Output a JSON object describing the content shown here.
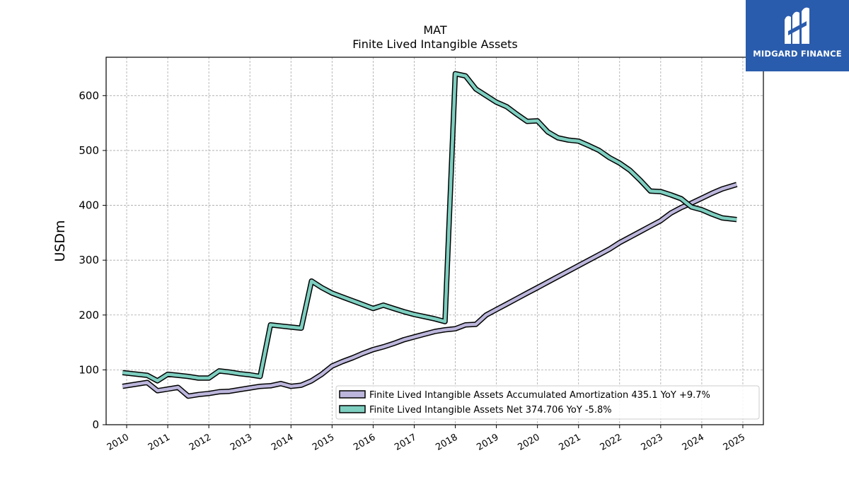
{
  "logo": {
    "name": "MIDGARD FINANCE",
    "bg_color": "#2a5cad"
  },
  "chart_data": {
    "type": "line",
    "title": "MAT",
    "subtitle": "Finite Lived Intangible Assets",
    "ylabel": "USDm",
    "xlabel": "",
    "ylim": [
      0,
      670
    ],
    "xlim": [
      2009.5,
      2025.5
    ],
    "yticks": [
      0,
      100,
      200,
      300,
      400,
      500,
      600
    ],
    "xticks": [
      "2010",
      "2011",
      "2012",
      "2013",
      "2014",
      "2015",
      "2016",
      "2017",
      "2018",
      "2019",
      "2020",
      "2021",
      "2022",
      "2023",
      "2024",
      "2025"
    ],
    "grid": true,
    "legend_position": "lower-right",
    "series": [
      {
        "name": "Finite Lived Intangible Assets Accumulated Amortization",
        "legend_label": "Finite Lived Intangible Assets Accumulated Amortization  435.1 YoY +9.7%",
        "color": "#bcb6dc",
        "x": [
          2009.9,
          2010.5,
          2010.75,
          2011.0,
          2011.25,
          2011.5,
          2011.75,
          2012.0,
          2012.25,
          2012.5,
          2012.75,
          2013.0,
          2013.25,
          2013.5,
          2013.75,
          2014.0,
          2014.25,
          2014.5,
          2014.75,
          2015.0,
          2015.25,
          2015.5,
          2015.75,
          2016.0,
          2016.25,
          2016.5,
          2016.75,
          2017.0,
          2017.25,
          2017.5,
          2017.75,
          2018.0,
          2018.25,
          2018.5,
          2018.75,
          2019.0,
          2019.25,
          2019.5,
          2019.75,
          2020.0,
          2020.25,
          2020.5,
          2020.75,
          2021.0,
          2021.25,
          2021.5,
          2021.75,
          2022.0,
          2022.25,
          2022.5,
          2022.75,
          2023.0,
          2023.25,
          2023.5,
          2023.75,
          2024.0,
          2024.25,
          2024.5,
          2024.85
        ],
        "values": [
          70,
          77,
          62,
          65,
          68,
          52,
          55,
          57,
          60,
          61,
          64,
          67,
          70,
          71,
          75,
          70,
          72,
          80,
          92,
          107,
          115,
          122,
          130,
          137,
          142,
          148,
          155,
          160,
          165,
          170,
          173,
          175,
          182,
          183,
          200,
          210,
          220,
          230,
          240,
          250,
          260,
          270,
          280,
          290,
          300,
          310,
          320,
          332,
          342,
          352,
          362,
          372,
          386,
          396,
          404,
          413,
          422,
          430,
          438
        ]
      },
      {
        "name": "Finite Lived Intangible Assets Net",
        "legend_label": "Finite Lived Intangible Assets Net  374.706 YoY -5.8%",
        "color": "#7ecfc0",
        "x": [
          2009.9,
          2010.5,
          2010.75,
          2011.0,
          2011.25,
          2011.5,
          2011.75,
          2012.0,
          2012.25,
          2012.5,
          2012.75,
          2013.0,
          2013.25,
          2013.5,
          2013.75,
          2014.0,
          2014.25,
          2014.5,
          2014.75,
          2015.0,
          2015.25,
          2015.5,
          2015.75,
          2016.0,
          2016.25,
          2016.5,
          2016.75,
          2017.0,
          2017.25,
          2017.5,
          2017.75,
          2018.0,
          2018.25,
          2018.5,
          2018.75,
          2019.0,
          2019.25,
          2019.5,
          2019.75,
          2020.0,
          2020.25,
          2020.5,
          2020.75,
          2021.0,
          2021.25,
          2021.5,
          2021.75,
          2022.0,
          2022.25,
          2022.5,
          2022.75,
          2023.0,
          2023.25,
          2023.5,
          2023.75,
          2024.0,
          2024.25,
          2024.5,
          2024.85
        ],
        "values": [
          95,
          90,
          80,
          92,
          90,
          88,
          85,
          85,
          98,
          96,
          93,
          91,
          88,
          182,
          180,
          178,
          176,
          262,
          250,
          240,
          233,
          226,
          219,
          212,
          218,
          212,
          206,
          201,
          197,
          193,
          188,
          640,
          636,
          612,
          600,
          588,
          580,
          566,
          553,
          554,
          534,
          523,
          519,
          517,
          509,
          500,
          487,
          477,
          464,
          446,
          426,
          425,
          419,
          412,
          397,
          392,
          384,
          377,
          374
        ]
      }
    ]
  }
}
